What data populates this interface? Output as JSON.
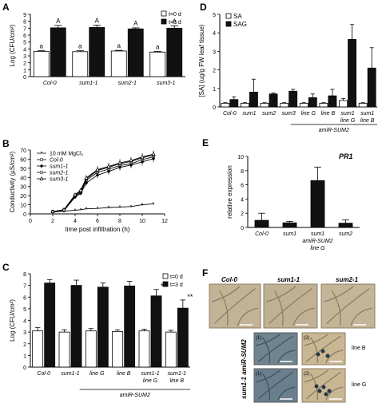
{
  "panel_letters": {
    "a": "A",
    "b": "B",
    "c": "C",
    "d": "D",
    "e": "E",
    "f": "F"
  },
  "colors": {
    "dark": "#111111",
    "light": "#ffffff",
    "stroke": "#000000",
    "leaf": "#b9a98c",
    "vein": "#8a7a62",
    "stain": "#2f4f5f"
  },
  "chart_data": [
    {
      "id": "A",
      "type": "bar",
      "categories": [
        "Col-0",
        "sum1-1",
        "sum2-1",
        "sum3-1"
      ],
      "ylabel": "Log (CFU/cm²)",
      "ylim": [
        0,
        9
      ],
      "yticks": [
        0,
        1,
        2,
        3,
        4,
        5,
        6,
        7,
        8,
        9
      ],
      "legend_position": "top-right",
      "grid": false,
      "series": [
        {
          "name": "t=0 d",
          "color": "#ffffff",
          "values": [
            3.65,
            3.6,
            3.7,
            3.55
          ],
          "errors": [
            0.1,
            0.15,
            0.1,
            0.1
          ],
          "labels": [
            "a",
            "a",
            "a",
            "a"
          ]
        },
        {
          "name": "t=3 d",
          "color": "#111111",
          "values": [
            7.05,
            7.1,
            6.9,
            7.0
          ],
          "errors": [
            0.35,
            0.35,
            0.15,
            0.35
          ],
          "labels": [
            "A",
            "A",
            "A",
            "A"
          ]
        }
      ]
    },
    {
      "id": "B",
      "type": "line",
      "xlabel": "time post infiltration (h)",
      "ylabel": "Conductivity (µS/cm²)",
      "xlim": [
        0,
        12
      ],
      "ylim": [
        0,
        70
      ],
      "xticks": [
        0,
        2,
        4,
        6,
        8,
        10,
        12
      ],
      "yticks": [
        0,
        10,
        20,
        30,
        40,
        50,
        60,
        70
      ],
      "legend_position": "top-left",
      "grid": false,
      "x": [
        2,
        3,
        4,
        4.5,
        5,
        6,
        7,
        8,
        9,
        10,
        11
      ],
      "series": [
        {
          "name": "10 mM MgCl₂",
          "marker": "star",
          "values": [
            2,
            3,
            4,
            4.5,
            5.5,
            6,
            7,
            7.5,
            8,
            10,
            11
          ],
          "errors": [
            0.5,
            0.5,
            0.5,
            0.5,
            0.5,
            0.5,
            0.8,
            0.8,
            0.8,
            1,
            1
          ]
        },
        {
          "name": "Col-0",
          "marker": "open-circle",
          "values": [
            2.5,
            4,
            19.5,
            23.5,
            37,
            45.5,
            49,
            53,
            55,
            59.5,
            62.5
          ],
          "errors": [
            0.5,
            1,
            2,
            2,
            3,
            4,
            3.5,
            4,
            4,
            4,
            4
          ]
        },
        {
          "name": "sum1-1",
          "marker": "filled-diamond",
          "values": [
            2.5,
            3.5,
            18.5,
            22.5,
            34,
            42.5,
            46.5,
            51,
            53.5,
            57,
            60.5
          ],
          "errors": [
            0.5,
            1,
            2,
            2,
            3,
            3.5,
            3.5,
            3.5,
            3.5,
            4,
            4
          ]
        },
        {
          "name": "sum2-1",
          "marker": "open-circle",
          "values": [
            2.5,
            4.5,
            20.5,
            25,
            38.5,
            47.5,
            51,
            55,
            57.5,
            61.5,
            64.5
          ],
          "errors": [
            0.5,
            1,
            2,
            2,
            3,
            4,
            4,
            4,
            4,
            4,
            4
          ]
        },
        {
          "name": "sum3-1",
          "marker": "triangle",
          "values": [
            2.5,
            4.5,
            21,
            26,
            39.5,
            48.5,
            52,
            56,
            58.5,
            62.5,
            65.5
          ],
          "errors": [
            0.5,
            1,
            2,
            2,
            3,
            4,
            4,
            4,
            4,
            4,
            4
          ]
        }
      ]
    },
    {
      "id": "C",
      "type": "bar",
      "categories": [
        "Col-0",
        "sum1-1",
        "line G",
        "line B",
        "sum1-1 line G",
        "sum1-1 line B"
      ],
      "group_label": "amiR-SUM2",
      "ylabel": "Log (CFU/cm²)",
      "ylim": [
        0,
        8
      ],
      "yticks": [
        0,
        1,
        2,
        3,
        4,
        5,
        6,
        7,
        8
      ],
      "legend_position": "top-right",
      "grid": false,
      "series": [
        {
          "name": "t=0 d",
          "color": "#ffffff",
          "values": [
            3.1,
            3.0,
            3.1,
            3.05,
            3.1,
            3.0
          ],
          "errors": [
            0.3,
            0.2,
            0.2,
            0.15,
            0.15,
            0.15
          ]
        },
        {
          "name": "t=3 d",
          "color": "#111111",
          "values": [
            7.2,
            7.0,
            6.85,
            6.95,
            6.1,
            5.05
          ],
          "errors": [
            0.3,
            0.45,
            0.35,
            0.4,
            0.55,
            0.7
          ]
        }
      ],
      "significance": [
        {
          "category": "sum1-1 line G",
          "mark": "*"
        },
        {
          "category": "sum1-1 line B",
          "mark": "**"
        }
      ]
    },
    {
      "id": "D",
      "type": "bar",
      "categories": [
        "Col-0",
        "sum1",
        "sum2",
        "sum3",
        "line G",
        "line B",
        "sum1 line G",
        "sum1 line B"
      ],
      "group_label": "amiR-SUM2",
      "ylabel": "[SA] (ug/g FW leaf tissue)",
      "ylim": [
        0,
        5
      ],
      "yticks": [
        0,
        1,
        2,
        3,
        4,
        5
      ],
      "legend_position": "top-left",
      "grid": false,
      "series": [
        {
          "name": "SA",
          "color": "#ffffff",
          "values": [
            0.2,
            0.2,
            0.2,
            0.2,
            0.2,
            0.2,
            0.35,
            0.2
          ],
          "errors": [
            0.03,
            0.03,
            0.03,
            0.03,
            0.03,
            0.03,
            0.1,
            0.03
          ]
        },
        {
          "name": "SAG",
          "color": "#111111",
          "values": [
            0.4,
            0.8,
            0.7,
            0.85,
            0.5,
            0.6,
            3.65,
            2.1
          ],
          "errors": [
            0.15,
            0.7,
            0.05,
            0.1,
            0.2,
            0.35,
            0.8,
            1.1
          ]
        }
      ]
    },
    {
      "id": "E",
      "type": "bar",
      "title": "PR1",
      "categories": [
        "Col-0",
        "sum1",
        "sum1 amiR-SUM2 line G",
        "sum2"
      ],
      "ylabel": "relative expression",
      "ylim": [
        0,
        10
      ],
      "yticks": [
        0,
        2,
        4,
        6,
        8,
        10
      ],
      "grid": false,
      "series": [
        {
          "name": "",
          "color": "#111111",
          "values": [
            1.0,
            0.65,
            6.6,
            0.6
          ],
          "errors": [
            1.0,
            0.2,
            1.9,
            0.45
          ]
        }
      ]
    }
  ],
  "panel_f": {
    "top_labels": [
      "Col-0",
      "sum1-1",
      "sum2-1"
    ],
    "side_label": "sum1-1 amiR-SUM2",
    "sub_labels": [
      "(1)",
      "(2)",
      "(1)",
      "(2)"
    ],
    "line_labels": [
      "line B",
      "line G"
    ]
  }
}
